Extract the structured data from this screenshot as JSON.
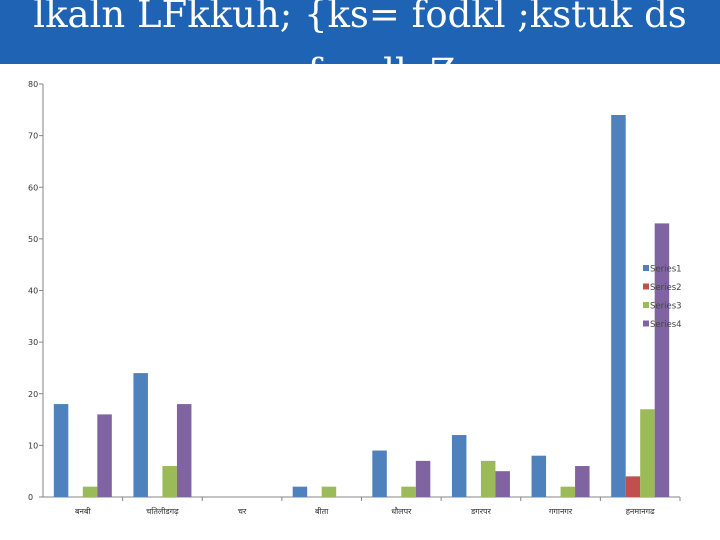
{
  "slide": {
    "title": "lkaln LFkkuh; {ks= fodkl ;kstuk ds yafcr dk;Z"
  },
  "chart_data": {
    "type": "bar",
    "title": "",
    "xlabel": "",
    "ylabel": "",
    "categories": [
      "बनबी",
      "चतिलीडगढ़",
      "चर",
      "बीता",
      "धौलपर",
      "डगरपर",
      "गगानगर",
      "हनमानगढ"
    ],
    "series": [
      {
        "name": "Series1",
        "color": "#4f81bd",
        "values": [
          18,
          24,
          0,
          2,
          9,
          12,
          8,
          74
        ]
      },
      {
        "name": "Series2",
        "color": "#c0504d",
        "values": [
          0,
          0,
          0,
          0,
          0,
          0,
          0,
          4
        ]
      },
      {
        "name": "Series3",
        "color": "#9bbb59",
        "values": [
          2,
          6,
          0,
          2,
          2,
          7,
          2,
          17
        ]
      },
      {
        "name": "Series4",
        "color": "#8064a2",
        "values": [
          16,
          18,
          0,
          0,
          7,
          5,
          6,
          53
        ]
      }
    ],
    "ylim": [
      0,
      80
    ],
    "yticks": [
      0,
      10,
      20,
      30,
      40,
      50,
      60,
      70,
      80
    ],
    "grid": false,
    "legend_position": "right"
  }
}
